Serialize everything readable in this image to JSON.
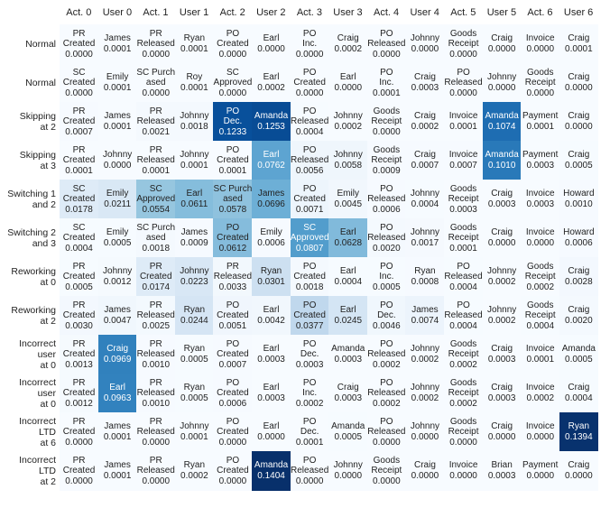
{
  "chart_data": {
    "type": "heatmap",
    "title": "",
    "columns": [
      "Act. 0",
      "User 0",
      "Act. 1",
      "User 1",
      "Act. 2",
      "User 2",
      "Act. 3",
      "User 3",
      "Act. 4",
      "User 4",
      "Act. 5",
      "User 5",
      "Act. 6",
      "User 6"
    ],
    "rows": [
      {
        "label": "Normal",
        "cells": [
          {
            "text": "PR Created",
            "value": 0.0
          },
          {
            "text": "James",
            "value": 0.0001
          },
          {
            "text": "PR Released",
            "value": 0.0
          },
          {
            "text": "Ryan",
            "value": 0.0001
          },
          {
            "text": "PO Created",
            "value": 0.0
          },
          {
            "text": "Earl",
            "value": 0.0
          },
          {
            "text": "PO Inc.",
            "value": 0.0
          },
          {
            "text": "Craig",
            "value": 0.0002
          },
          {
            "text": "PO Released",
            "value": 0.0
          },
          {
            "text": "Johnny",
            "value": 0.0
          },
          {
            "text": "Goods Receipt",
            "value": 0.0
          },
          {
            "text": "Craig",
            "value": 0.0
          },
          {
            "text": "Invoice",
            "value": 0.0
          },
          {
            "text": "Craig",
            "value": 0.0001
          }
        ]
      },
      {
        "label": "Normal",
        "cells": [
          {
            "text": "SC Created",
            "value": 0.0
          },
          {
            "text": "Emily",
            "value": 0.0001
          },
          {
            "text": "SC Purch ased",
            "value": 0.0
          },
          {
            "text": "Roy",
            "value": 0.0001
          },
          {
            "text": "SC Approved",
            "value": 0.0
          },
          {
            "text": "Earl",
            "value": 0.0002
          },
          {
            "text": "PO Created",
            "value": 0.0
          },
          {
            "text": "Earl",
            "value": 0.0
          },
          {
            "text": "PO Inc.",
            "value": 0.0001
          },
          {
            "text": "Craig",
            "value": 0.0003
          },
          {
            "text": "PO Released",
            "value": 0.0
          },
          {
            "text": "Johnny",
            "value": 0.0
          },
          {
            "text": "Goods Receipt",
            "value": 0.0
          },
          {
            "text": "Craig",
            "value": 0.0
          }
        ]
      },
      {
        "label": "Skipping at 2",
        "cells": [
          {
            "text": "PR Created",
            "value": 0.0007
          },
          {
            "text": "James",
            "value": 0.0001
          },
          {
            "text": "PR Released",
            "value": 0.0021
          },
          {
            "text": "Johnny",
            "value": 0.0018
          },
          {
            "text": "PO Dec.",
            "value": 0.1233
          },
          {
            "text": "Amanda",
            "value": 0.1253
          },
          {
            "text": "PO Released",
            "value": 0.0004
          },
          {
            "text": "Johnny",
            "value": 0.0002
          },
          {
            "text": "Goods Receipt",
            "value": 0.0
          },
          {
            "text": "Craig",
            "value": 0.0002
          },
          {
            "text": "Invoice",
            "value": 0.0001
          },
          {
            "text": "Amanda",
            "value": 0.1074
          },
          {
            "text": "Payment",
            "value": 0.0001
          },
          {
            "text": "Craig",
            "value": 0.0
          }
        ]
      },
      {
        "label": "Skipping at 3",
        "cells": [
          {
            "text": "PR Created",
            "value": 0.0001
          },
          {
            "text": "Johnny",
            "value": 0.0
          },
          {
            "text": "PR Released",
            "value": 0.0001
          },
          {
            "text": "Johnny",
            "value": 0.0001
          },
          {
            "text": "PO Created",
            "value": 0.0001
          },
          {
            "text": "Earl",
            "value": 0.0762
          },
          {
            "text": "PO Released",
            "value": 0.0056
          },
          {
            "text": "Johnny",
            "value": 0.0058
          },
          {
            "text": "Goods Receipt",
            "value": 0.0009
          },
          {
            "text": "Craig",
            "value": 0.0007
          },
          {
            "text": "Invoice",
            "value": 0.0007
          },
          {
            "text": "Amanda",
            "value": 0.101
          },
          {
            "text": "Payment",
            "value": 0.0003
          },
          {
            "text": "Craig",
            "value": 0.0005
          }
        ]
      },
      {
        "label": "Switching 1 and 2",
        "cells": [
          {
            "text": "SC Created",
            "value": 0.0178
          },
          {
            "text": "Emily",
            "value": 0.0211
          },
          {
            "text": "SC Approved",
            "value": 0.0554
          },
          {
            "text": "Earl",
            "value": 0.0611
          },
          {
            "text": "SC Purch ased",
            "value": 0.0578
          },
          {
            "text": "James",
            "value": 0.0696
          },
          {
            "text": "PO Created",
            "value": 0.0071
          },
          {
            "text": "Emily",
            "value": 0.0045
          },
          {
            "text": "PO Released",
            "value": 0.0006
          },
          {
            "text": "Johnny",
            "value": 0.0004
          },
          {
            "text": "Goods Receipt",
            "value": 0.0003
          },
          {
            "text": "Craig",
            "value": 0.0003
          },
          {
            "text": "Invoice",
            "value": 0.0003
          },
          {
            "text": "Howard",
            "value": 0.001
          }
        ]
      },
      {
        "label": "Switching 2 and 3",
        "cells": [
          {
            "text": "SC Created",
            "value": 0.0004
          },
          {
            "text": "Emily",
            "value": 0.0005
          },
          {
            "text": "SC Purch ased",
            "value": 0.0018
          },
          {
            "text": "James",
            "value": 0.0009
          },
          {
            "text": "PO Created",
            "value": 0.0612
          },
          {
            "text": "Emily",
            "value": 0.0006
          },
          {
            "text": "SC Approved",
            "value": 0.0807
          },
          {
            "text": "Earl",
            "value": 0.0628
          },
          {
            "text": "PO Released",
            "value": 0.002
          },
          {
            "text": "Johnny",
            "value": 0.0017
          },
          {
            "text": "Goods Receipt",
            "value": 0.0001
          },
          {
            "text": "Craig",
            "value": 0.0
          },
          {
            "text": "Invoice",
            "value": 0.0
          },
          {
            "text": "Howard",
            "value": 0.0006
          }
        ]
      },
      {
        "label": "Reworking at 0",
        "cells": [
          {
            "text": "PR Created",
            "value": 0.0005
          },
          {
            "text": "Johnny",
            "value": 0.0012
          },
          {
            "text": "PR Created",
            "value": 0.0174
          },
          {
            "text": "Johnny",
            "value": 0.0223
          },
          {
            "text": "PR Released",
            "value": 0.0033
          },
          {
            "text": "Ryan",
            "value": 0.0301
          },
          {
            "text": "PO Created",
            "value": 0.0018
          },
          {
            "text": "Earl",
            "value": 0.0004
          },
          {
            "text": "PO Inc.",
            "value": 0.0005
          },
          {
            "text": "Ryan",
            "value": 0.0008
          },
          {
            "text": "PO Released",
            "value": 0.0004
          },
          {
            "text": "Johnny",
            "value": 0.0002
          },
          {
            "text": "Goods Receipt",
            "value": 0.0002
          },
          {
            "text": "Craig",
            "value": 0.0028
          }
        ]
      },
      {
        "label": "Reworking at 2",
        "cells": [
          {
            "text": "PR Created",
            "value": 0.003
          },
          {
            "text": "James",
            "value": 0.0047
          },
          {
            "text": "PR Released",
            "value": 0.0025
          },
          {
            "text": "Ryan",
            "value": 0.0244
          },
          {
            "text": "PO Created",
            "value": 0.0051
          },
          {
            "text": "Earl",
            "value": 0.0042
          },
          {
            "text": "PO Created",
            "value": 0.0377
          },
          {
            "text": "Earl",
            "value": 0.0245
          },
          {
            "text": "PO Dec.",
            "value": 0.0046
          },
          {
            "text": "James",
            "value": 0.0074
          },
          {
            "text": "PO Released",
            "value": 0.0004
          },
          {
            "text": "Johnny",
            "value": 0.0002
          },
          {
            "text": "Goods Receipt",
            "value": 0.0004
          },
          {
            "text": "Craig",
            "value": 0.002
          }
        ]
      },
      {
        "label": "Incorrect user at 0",
        "cells": [
          {
            "text": "PR Created",
            "value": 0.0013
          },
          {
            "text": "Craig",
            "value": 0.0969
          },
          {
            "text": "PR Released",
            "value": 0.001
          },
          {
            "text": "Ryan",
            "value": 0.0005
          },
          {
            "text": "PO Created",
            "value": 0.0007
          },
          {
            "text": "Earl",
            "value": 0.0003
          },
          {
            "text": "PO Dec.",
            "value": 0.0003
          },
          {
            "text": "Amanda",
            "value": 0.0003
          },
          {
            "text": "PO Released",
            "value": 0.0002
          },
          {
            "text": "Johnny",
            "value": 0.0002
          },
          {
            "text": "Goods Receipt",
            "value": 0.0002
          },
          {
            "text": "Craig",
            "value": 0.0003
          },
          {
            "text": "Invoice",
            "value": 0.0001
          },
          {
            "text": "Amanda",
            "value": 0.0005
          }
        ]
      },
      {
        "label": "Incorrect user at 0",
        "cells": [
          {
            "text": "PR Created",
            "value": 0.0012
          },
          {
            "text": "Earl",
            "value": 0.0963
          },
          {
            "text": "PR Released",
            "value": 0.001
          },
          {
            "text": "Ryan",
            "value": 0.0005
          },
          {
            "text": "PO Created",
            "value": 0.0006
          },
          {
            "text": "Earl",
            "value": 0.0003
          },
          {
            "text": "PO Inc.",
            "value": 0.0002
          },
          {
            "text": "Craig",
            "value": 0.0003
          },
          {
            "text": "PO Released",
            "value": 0.0002
          },
          {
            "text": "Johnny",
            "value": 0.0002
          },
          {
            "text": "Goods Receipt",
            "value": 0.0002
          },
          {
            "text": "Craig",
            "value": 0.0003
          },
          {
            "text": "Invoice",
            "value": 0.0002
          },
          {
            "text": "Craig",
            "value": 0.0004
          }
        ]
      },
      {
        "label": "Incorrect LTD at 6",
        "cells": [
          {
            "text": "PR Created",
            "value": 0.0
          },
          {
            "text": "James",
            "value": 0.0001
          },
          {
            "text": "PR Released",
            "value": 0.0
          },
          {
            "text": "Johnny",
            "value": 0.0001
          },
          {
            "text": "PO Created",
            "value": 0.0
          },
          {
            "text": "Earl",
            "value": 0.0
          },
          {
            "text": "PO Dec.",
            "value": 0.0001
          },
          {
            "text": "Amanda",
            "value": 0.0005
          },
          {
            "text": "PO Released",
            "value": 0.0
          },
          {
            "text": "Johnny",
            "value": 0.0
          },
          {
            "text": "Goods Receipt",
            "value": 0.0
          },
          {
            "text": "Craig",
            "value": 0.0
          },
          {
            "text": "Invoice",
            "value": 0.0
          },
          {
            "text": "Ryan",
            "value": 0.1394
          }
        ]
      },
      {
        "label": "Incorrect LTD at 2",
        "cells": [
          {
            "text": "PR Created",
            "value": 0.0
          },
          {
            "text": "James",
            "value": 0.0001
          },
          {
            "text": "PR Released",
            "value": 0.0
          },
          {
            "text": "Ryan",
            "value": 0.0002
          },
          {
            "text": "PO Created",
            "value": 0.0
          },
          {
            "text": "Amanda",
            "value": 0.1404
          },
          {
            "text": "PO Released",
            "value": 0.0
          },
          {
            "text": "Johnny",
            "value": 0.0
          },
          {
            "text": "Goods Receipt",
            "value": 0.0
          },
          {
            "text": "Craig",
            "value": 0.0
          },
          {
            "text": "Invoice",
            "value": 0.0
          },
          {
            "text": "Brian",
            "value": 0.0003
          },
          {
            "text": "Payment",
            "value": 0.0
          },
          {
            "text": "Craig",
            "value": 0.0
          }
        ]
      }
    ],
    "colormap": [
      "#f7fbff",
      "#deebf7",
      "#c6dbef",
      "#9ecae1",
      "#6baed6",
      "#4292c6",
      "#2171b5",
      "#08519c",
      "#08306b"
    ],
    "vmin": 0.0,
    "vmax": 0.1404,
    "grid": false
  }
}
